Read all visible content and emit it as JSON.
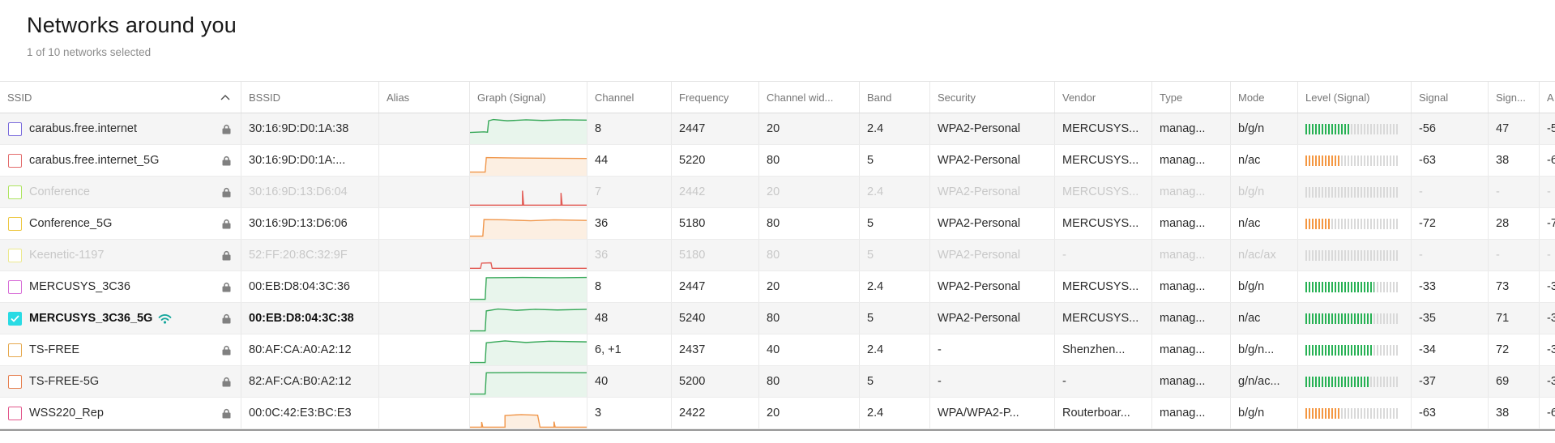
{
  "page": {
    "title": "Networks around you",
    "subtitle": "1 of 10 networks selected"
  },
  "palette": {
    "graph_green": "#36a858",
    "graph_green_fill": "#e8f5ec",
    "graph_orange": "#f0964a",
    "graph_orange_fill": "#fcefe2",
    "graph_red": "#e25b55",
    "bar_green": "#27b154",
    "bar_orange": "#f49742",
    "bar_empty": "#d9d9d9",
    "wifi_icon": "#17a79d",
    "lock_icon": "#808080",
    "check_mark": "#ffffff"
  },
  "table": {
    "sort_column": "ssid",
    "sort_direction": "asc",
    "columns": [
      {
        "key": "ssid",
        "label": "SSID"
      },
      {
        "key": "bssid",
        "label": "BSSID"
      },
      {
        "key": "alias",
        "label": "Alias"
      },
      {
        "key": "graph",
        "label": "Graph (Signal)"
      },
      {
        "key": "channel",
        "label": "Channel"
      },
      {
        "key": "frequency",
        "label": "Frequency"
      },
      {
        "key": "channel_width",
        "label": "Channel wid..."
      },
      {
        "key": "band",
        "label": "Band"
      },
      {
        "key": "security",
        "label": "Security"
      },
      {
        "key": "vendor",
        "label": "Vendor"
      },
      {
        "key": "type",
        "label": "Type"
      },
      {
        "key": "mode",
        "label": "Mode"
      },
      {
        "key": "level",
        "label": "Level (Signal)"
      },
      {
        "key": "signal",
        "label": "Signal"
      },
      {
        "key": "signal_pct",
        "label": "Sign..."
      },
      {
        "key": "amount",
        "label": "A"
      }
    ],
    "rows": [
      {
        "ssid": "carabus.free.internet",
        "checkbox_color": "#7a6bdc",
        "checked": false,
        "dimmed": false,
        "selected": false,
        "has_wifi_icon": false,
        "locked": true,
        "bssid": "30:16:9D:D0:1A:38",
        "alias": "",
        "graph": {
          "color": "green",
          "fill": true,
          "points": [
            [
              0,
              62
            ],
            [
              12,
              60
            ],
            [
              15,
              61
            ],
            [
              16,
              24
            ],
            [
              20,
              20
            ],
            [
              32,
              24
            ],
            [
              48,
              21
            ],
            [
              62,
              23
            ],
            [
              80,
              21
            ],
            [
              100,
              22
            ]
          ]
        },
        "channel": "8",
        "frequency": "2447",
        "channel_width": "20",
        "band": "2.4",
        "security": "WPA2-Personal",
        "vendor": "MERCUSYS...",
        "type": "manag...",
        "mode": "b/g/n",
        "level": {
          "percent": 47,
          "color": "green"
        },
        "signal": "-56",
        "signal_pct": "47",
        "amount": "-5"
      },
      {
        "ssid": "carabus.free.internet_5G",
        "checkbox_color": "#e36c6c",
        "checked": false,
        "dimmed": false,
        "selected": false,
        "has_wifi_icon": false,
        "locked": true,
        "bssid": "30:16:9D:D0:1A:...",
        "alias": "",
        "graph": {
          "color": "orange",
          "fill": true,
          "points": [
            [
              0,
              88
            ],
            [
              13,
              88
            ],
            [
              14,
              41
            ],
            [
              32,
              42
            ],
            [
              60,
              43
            ],
            [
              100,
              44
            ]
          ]
        },
        "channel": "44",
        "frequency": "5220",
        "channel_width": "80",
        "band": "5",
        "security": "WPA2-Personal",
        "vendor": "MERCUSYS...",
        "type": "manag...",
        "mode": "n/ac",
        "level": {
          "percent": 38,
          "color": "orange"
        },
        "signal": "-63",
        "signal_pct": "38",
        "amount": "-6"
      },
      {
        "ssid": "Conference",
        "checkbox_color": "#aee460",
        "checked": false,
        "dimmed": true,
        "selected": false,
        "has_wifi_icon": false,
        "locked": true,
        "bssid": "30:16:9D:13:D6:04",
        "alias": "",
        "graph": {
          "color": "red",
          "fill": false,
          "points": [
            [
              0,
              93
            ],
            [
              45,
              93
            ],
            [
              45,
              46
            ],
            [
              46,
              93
            ],
            [
              78,
              93
            ],
            [
              78,
              53
            ],
            [
              79,
              93
            ],
            [
              100,
              93
            ]
          ]
        },
        "channel": "7",
        "frequency": "2442",
        "channel_width": "20",
        "band": "2.4",
        "security": "WPA2-Personal",
        "vendor": "MERCUSYS...",
        "type": "manag...",
        "mode": "b/g/n",
        "level": {
          "percent": 0,
          "color": "green"
        },
        "signal": "-",
        "signal_pct": "-",
        "amount": "-"
      },
      {
        "ssid": "Conference_5G",
        "checkbox_color": "#edc843",
        "checked": false,
        "dimmed": false,
        "selected": false,
        "has_wifi_icon": false,
        "locked": true,
        "bssid": "30:16:9D:13:D6:06",
        "alias": "",
        "graph": {
          "color": "orange",
          "fill": true,
          "points": [
            [
              0,
              91
            ],
            [
              11,
              91
            ],
            [
              12,
              37
            ],
            [
              30,
              38
            ],
            [
              52,
              41
            ],
            [
              72,
              38
            ],
            [
              100,
              40
            ]
          ]
        },
        "channel": "36",
        "frequency": "5180",
        "channel_width": "80",
        "band": "5",
        "security": "WPA2-Personal",
        "vendor": "MERCUSYS...",
        "type": "manag...",
        "mode": "n/ac",
        "level": {
          "percent": 28,
          "color": "orange"
        },
        "signal": "-72",
        "signal_pct": "28",
        "amount": "-7"
      },
      {
        "ssid": "Keenetic-1197",
        "checkbox_color": "#ece98f",
        "checked": false,
        "dimmed": true,
        "selected": false,
        "has_wifi_icon": false,
        "locked": true,
        "bssid": "52:FF:20:8C:32:9F",
        "alias": "",
        "graph": {
          "color": "red",
          "fill": false,
          "points": [
            [
              0,
              93
            ],
            [
              9,
              93
            ],
            [
              10,
              76
            ],
            [
              18,
              75
            ],
            [
              19,
              93
            ],
            [
              100,
              93
            ]
          ]
        },
        "channel": "36",
        "frequency": "5180",
        "channel_width": "80",
        "band": "5",
        "security": "WPA2-Personal",
        "vendor": "-",
        "type": "manag...",
        "mode": "n/ac/ax",
        "level": {
          "percent": 0,
          "color": "green"
        },
        "signal": "-",
        "signal_pct": "-",
        "amount": "-"
      },
      {
        "ssid": "MERCUSYS_3C36",
        "checkbox_color": "#d86fd8",
        "checked": false,
        "dimmed": false,
        "selected": false,
        "has_wifi_icon": false,
        "locked": true,
        "bssid": "00:EB:D8:04:3C:36",
        "alias": "",
        "graph": {
          "color": "green",
          "fill": true,
          "points": [
            [
              0,
              91
            ],
            [
              13,
              91
            ],
            [
              14,
              21
            ],
            [
              45,
              20
            ],
            [
              75,
              21
            ],
            [
              100,
              20
            ]
          ]
        },
        "channel": "8",
        "frequency": "2447",
        "channel_width": "20",
        "band": "2.4",
        "security": "WPA2-Personal",
        "vendor": "MERCUSYS...",
        "type": "manag...",
        "mode": "b/g/n",
        "level": {
          "percent": 73,
          "color": "green"
        },
        "signal": "-33",
        "signal_pct": "73",
        "amount": "-3"
      },
      {
        "ssid": "MERCUSYS_3C36_5G",
        "checkbox_color": "#29dbe4",
        "checked": true,
        "dimmed": false,
        "selected": true,
        "has_wifi_icon": true,
        "locked": true,
        "bssid": "00:EB:D8:04:3C:38",
        "alias": "",
        "graph": {
          "color": "green",
          "fill": true,
          "points": [
            [
              0,
              91
            ],
            [
              13,
              91
            ],
            [
              14,
              26
            ],
            [
              24,
              20
            ],
            [
              40,
              24
            ],
            [
              56,
              21
            ],
            [
              75,
              23
            ],
            [
              100,
              21
            ]
          ]
        },
        "channel": "48",
        "frequency": "5240",
        "channel_width": "80",
        "band": "5",
        "security": "WPA2-Personal",
        "vendor": "MERCUSYS...",
        "type": "manag...",
        "mode": "n/ac",
        "level": {
          "percent": 71,
          "color": "green"
        },
        "signal": "-35",
        "signal_pct": "71",
        "amount": "-3"
      },
      {
        "ssid": "TS-FREE",
        "checkbox_color": "#e6a94e",
        "checked": false,
        "dimmed": false,
        "selected": false,
        "has_wifi_icon": false,
        "locked": true,
        "bssid": "80:AF:CA:A0:A2:12",
        "alias": "",
        "graph": {
          "color": "green",
          "fill": true,
          "points": [
            [
              0,
              91
            ],
            [
              13,
              91
            ],
            [
              14,
              27
            ],
            [
              30,
              21
            ],
            [
              48,
              26
            ],
            [
              68,
              22
            ],
            [
              100,
              24
            ]
          ]
        },
        "channel": "6, +1",
        "frequency": "2437",
        "channel_width": "40",
        "band": "2.4",
        "security": "-",
        "vendor": "Shenzhen...",
        "type": "manag...",
        "mode": "b/g/n...",
        "level": {
          "percent": 72,
          "color": "green"
        },
        "signal": "-34",
        "signal_pct": "72",
        "amount": "-3"
      },
      {
        "ssid": "TS-FREE-5G",
        "checkbox_color": "#e68050",
        "checked": false,
        "dimmed": false,
        "selected": false,
        "has_wifi_icon": false,
        "locked": true,
        "bssid": "82:AF:CA:B0:A2:12",
        "alias": "",
        "graph": {
          "color": "green",
          "fill": true,
          "points": [
            [
              0,
              91
            ],
            [
              13,
              91
            ],
            [
              14,
              22
            ],
            [
              50,
              21
            ],
            [
              100,
              22
            ]
          ]
        },
        "channel": "40",
        "frequency": "5200",
        "channel_width": "80",
        "band": "5",
        "security": "-",
        "vendor": "-",
        "type": "manag...",
        "mode": "g/n/ac...",
        "level": {
          "percent": 69,
          "color": "green"
        },
        "signal": "-37",
        "signal_pct": "69",
        "amount": "-3"
      },
      {
        "ssid": "WSS220_Rep",
        "checkbox_color": "#e2568b",
        "checked": false,
        "dimmed": false,
        "selected": false,
        "has_wifi_icon": false,
        "locked": true,
        "bssid": "00:0C:42:E3:BC:E3",
        "alias": "",
        "graph": {
          "color": "orange",
          "fill": true,
          "points": [
            [
              0,
              96
            ],
            [
              10,
              96
            ],
            [
              10,
              79
            ],
            [
              11,
              96
            ],
            [
              30,
              96
            ],
            [
              30,
              58
            ],
            [
              44,
              55
            ],
            [
              58,
              57
            ],
            [
              60,
              96
            ],
            [
              72,
              96
            ],
            [
              72,
              78
            ],
            [
              73,
              96
            ],
            [
              100,
              96
            ]
          ]
        },
        "channel": "3",
        "frequency": "2422",
        "channel_width": "20",
        "band": "2.4",
        "security": "WPA/WPA2-P...",
        "vendor": "Routerboar...",
        "type": "manag...",
        "mode": "b/g/n",
        "level": {
          "percent": 38,
          "color": "orange"
        },
        "signal": "-63",
        "signal_pct": "38",
        "amount": "-6"
      }
    ]
  }
}
